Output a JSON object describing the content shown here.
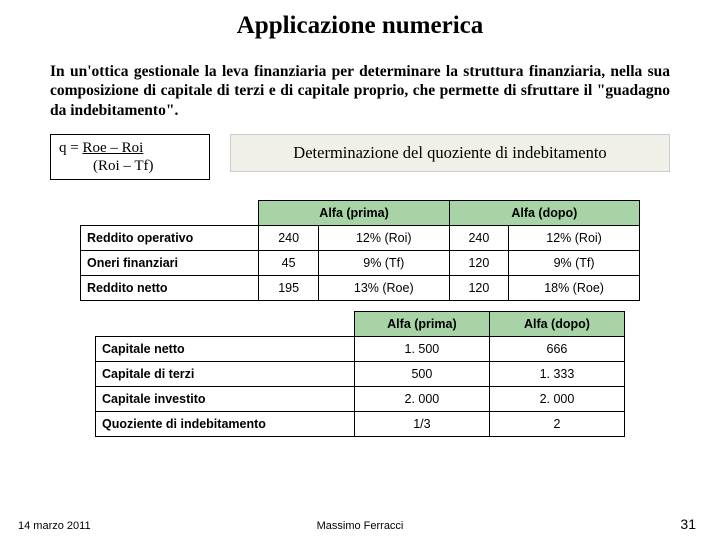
{
  "title": "Applicazione numerica",
  "intro": "In un'ottica gestionale la leva finanziaria per determinare la struttura finanziaria, nella sua composizione di capitale di terzi e di capitale proprio, che permette di sfruttare il \"guadagno da indebitamento\".",
  "formula": {
    "l1": "q = ",
    "l1u": "Roe – Roi",
    "l2": "(Roi – Tf)"
  },
  "det_label": "Determinazione del quoziente di indebitamento",
  "t1": {
    "head1": "Alfa (prima)",
    "head2": "Alfa (dopo)",
    "rows": [
      {
        "label": "Reddito operativo",
        "a_num": "240",
        "a_pct": "12% (Roi)",
        "b_num": "240",
        "b_pct": "12% (Roi)"
      },
      {
        "label": "Oneri finanziari",
        "a_num": "45",
        "a_pct": "9% (Tf)",
        "b_num": "120",
        "b_pct": "9% (Tf)"
      },
      {
        "label": "Reddito netto",
        "a_num": "195",
        "a_pct": "13% (Roe)",
        "b_num": "120",
        "b_pct": "18% (Roe)"
      }
    ]
  },
  "t2": {
    "head1": "Alfa (prima)",
    "head2": "Alfa (dopo)",
    "rows": [
      {
        "label": "Capitale netto",
        "a": "1. 500",
        "b": "666"
      },
      {
        "label": "Capitale di terzi",
        "a": "500",
        "b": "1. 333"
      },
      {
        "label": "Capitale investito",
        "a": "2. 000",
        "b": "2. 000"
      },
      {
        "label": "Quoziente di indebitamento",
        "a": "1/3",
        "b": "2"
      }
    ]
  },
  "footer": {
    "date": "14 marzo 2011",
    "author": "Massimo Ferracci",
    "page": "31"
  },
  "colors": {
    "header_bg": "#a7d3a7",
    "det_bg": "#f0f0e8",
    "border": "#000000",
    "page_bg": "#ffffff"
  }
}
